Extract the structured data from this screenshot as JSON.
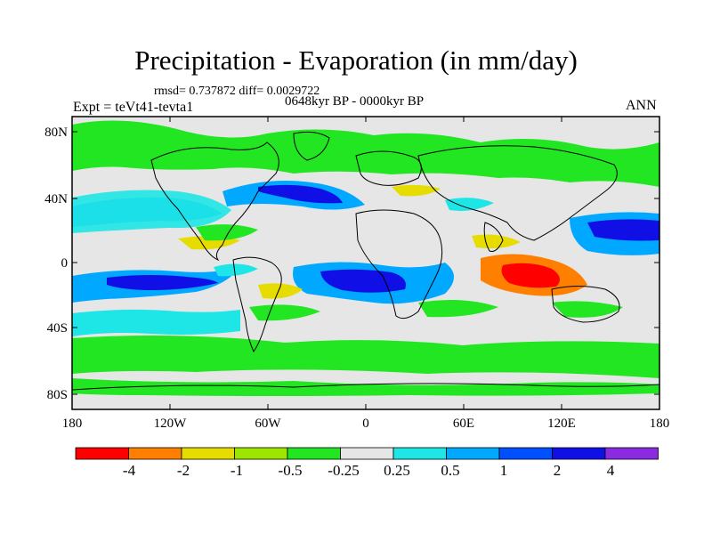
{
  "title": "Precipitation - Evaporation (in mm/day)",
  "stats": "rmsd= 0.737872 diff= 0.0029722",
  "period": "0648kyr BP - 0000kyr BP",
  "expt": "Expt = teVt41-tevta1",
  "season": "ANN",
  "map": {
    "lat_labels": [
      "80N",
      "40N",
      "0",
      "40S",
      "80S"
    ],
    "lon_labels": [
      "180",
      "120W",
      "60W",
      "0",
      "60E",
      "120E",
      "180"
    ],
    "colors": {
      "background": "#e6e6e6",
      "frame": "#000000",
      "coast": "#000000"
    }
  },
  "colorbar": {
    "labels": [
      "-4",
      "-2",
      "-1",
      "-0.5",
      "-0.25",
      "0.25",
      "0.5",
      "1",
      "2",
      "4"
    ],
    "colors": [
      "#ff0000",
      "#ff8000",
      "#e6dc00",
      "#9ee600",
      "#22e622",
      "#e6e6e6",
      "#1ee6e6",
      "#00a8ff",
      "#0050ff",
      "#1010e6",
      "#8a2be2"
    ]
  }
}
